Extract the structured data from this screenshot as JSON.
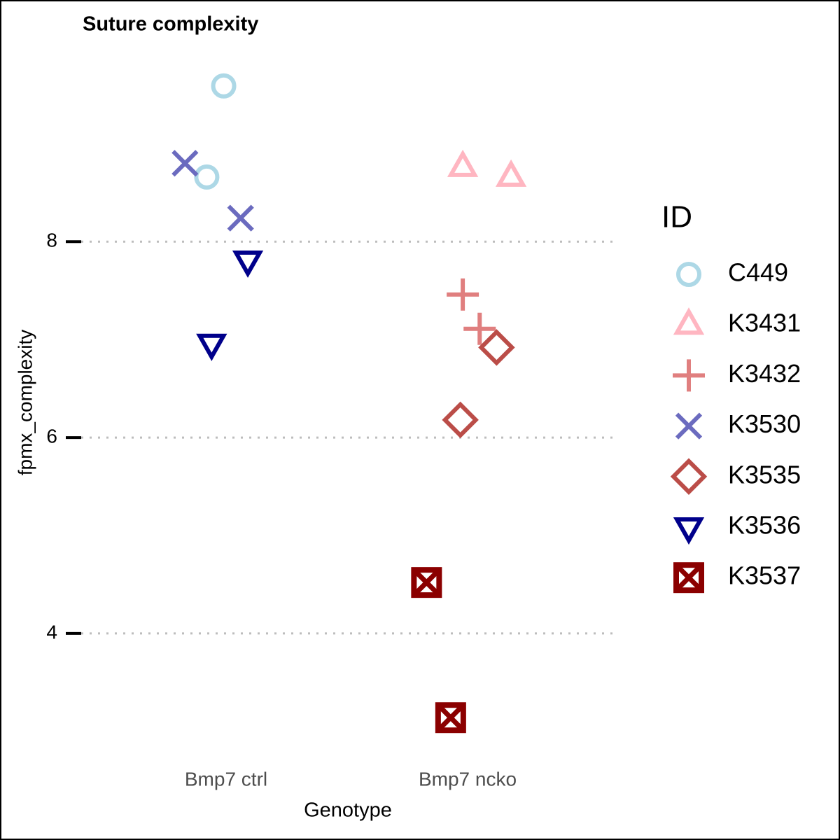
{
  "chart_data": {
    "type": "scatter",
    "title": "Suture complexity",
    "x_label": "Genotype",
    "y_label": "fpmx_complexity",
    "legend_title": "ID",
    "xlim": [
      0.4,
      2.6
    ],
    "xticks": [
      {
        "value": 1,
        "label": "Bmp7 ctrl"
      },
      {
        "value": 2,
        "label": "Bmp7 ncko"
      }
    ],
    "ylim": [
      2.82,
      9.91
    ],
    "yticks": [
      4,
      6,
      8
    ],
    "grid": true,
    "legend": "right",
    "series": [
      {
        "name": "C449",
        "color": "#add8e6",
        "shape": "circle",
        "x": [
          0.99,
          0.92
        ],
        "values": [
          9.59,
          8.66
        ]
      },
      {
        "name": "K3431",
        "color": "#ffb6c1",
        "shape": "triangle",
        "x": [
          1.98,
          2.18
        ],
        "values": [
          8.76,
          8.66
        ]
      },
      {
        "name": "K3432",
        "color": "#e07f7f",
        "shape": "plus",
        "x": [
          1.98,
          2.05
        ],
        "values": [
          7.46,
          7.11
        ]
      },
      {
        "name": "K3530",
        "color": "#6b6bbf",
        "shape": "cross",
        "x": [
          0.83,
          1.06
        ],
        "values": [
          8.8,
          8.24
        ]
      },
      {
        "name": "K3535",
        "color": "#bb4d48",
        "shape": "diamond",
        "x": [
          2.12,
          1.97
        ],
        "values": [
          6.92,
          6.18
        ]
      },
      {
        "name": "K3536",
        "color": "#00008b",
        "shape": "triangle-down",
        "x": [
          1.09,
          0.94
        ],
        "values": [
          7.81,
          6.96
        ]
      },
      {
        "name": "K3537",
        "color": "#8b0000",
        "shape": "boxcross",
        "x": [
          1.83,
          1.93
        ],
        "values": [
          4.52,
          3.14
        ]
      }
    ]
  }
}
